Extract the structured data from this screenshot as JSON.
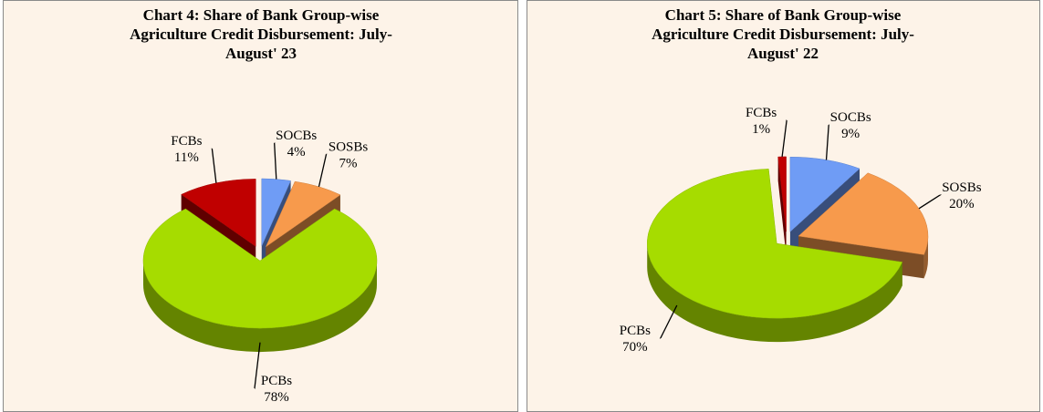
{
  "chart_data": [
    {
      "type": "pie",
      "title": "Chart 4: Share of  Bank Group-wise Agriculture Credit Disbursement: July-August' 23",
      "categories": [
        "SOCBs",
        "SOSBs",
        "PCBs",
        "FCBs"
      ],
      "values": [
        4,
        7,
        78,
        11
      ],
      "value_labels": [
        "4%",
        "7%",
        "78%",
        "11%"
      ],
      "colors": [
        "#6f9cf5",
        "#f79a4c",
        "#a6dc00",
        "#c00000"
      ]
    },
    {
      "type": "pie",
      "title": "Chart 5: Share of  Bank Group-wise Agriculture Credit Disbursement: July-August' 22",
      "categories": [
        "SOCBs",
        "SOSBs",
        "PCBs",
        "FCBs"
      ],
      "values": [
        9,
        20,
        70,
        1
      ],
      "value_labels": [
        "9%",
        "20%",
        "70%",
        "1%"
      ],
      "colors": [
        "#6f9cf5",
        "#f79a4c",
        "#a6dc00",
        "#c00000"
      ]
    }
  ]
}
